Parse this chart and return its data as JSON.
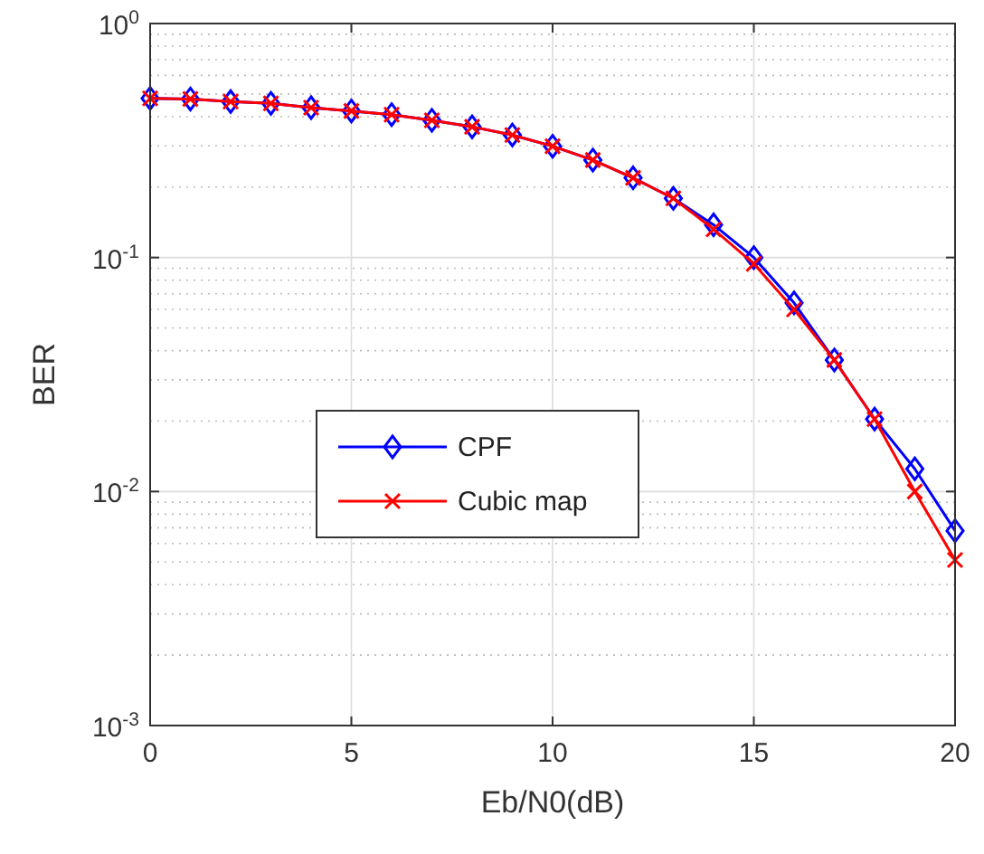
{
  "chart_data": {
    "type": "line",
    "xlabel": "Eb/N0(dB)",
    "ylabel": "BER",
    "log": "y",
    "grid": true,
    "legend": "left",
    "xlim": [
      0,
      20
    ],
    "xticks": [
      0,
      5,
      10,
      15,
      20
    ],
    "ylim": [
      0.001,
      1
    ],
    "yticks": [
      {
        "value": 0.001,
        "label": "10$^{-3}$"
      },
      {
        "value": 0.01,
        "label": "10$^{-2}$"
      },
      {
        "value": 0.1,
        "label": "10$^{-1}$"
      },
      {
        "value": 1,
        "label": "10$^{0}$"
      }
    ],
    "x": [
      0,
      1,
      2,
      3,
      4,
      5,
      6,
      7,
      8,
      9,
      10,
      11,
      12,
      13,
      14,
      15,
      16,
      17,
      18,
      19,
      20
    ],
    "series": [
      {
        "name": "CPF",
        "color": "#0000ff",
        "marker": "diamond",
        "values": [
          0.479,
          0.476,
          0.464,
          0.456,
          0.437,
          0.423,
          0.408,
          0.386,
          0.362,
          0.334,
          0.299,
          0.261,
          0.219,
          0.179,
          0.138,
          0.1,
          0.064,
          0.0365,
          0.0204,
          0.0125,
          0.0068
        ]
      },
      {
        "name": "Cubic map",
        "color": "#ff0000",
        "marker": "cross",
        "values": [
          0.479,
          0.476,
          0.464,
          0.456,
          0.437,
          0.423,
          0.408,
          0.386,
          0.362,
          0.334,
          0.299,
          0.261,
          0.219,
          0.179,
          0.132,
          0.094,
          0.06,
          0.0365,
          0.0204,
          0.01,
          0.0051
        ]
      }
    ]
  }
}
